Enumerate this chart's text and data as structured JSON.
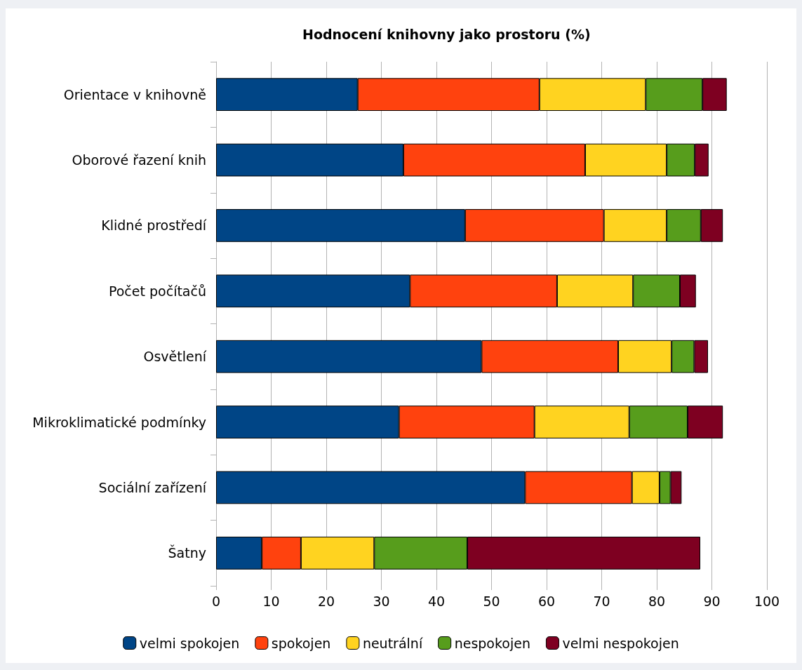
{
  "chart_data": {
    "type": "bar",
    "title": "Hodnocení knihovny jako prostoru (%)",
    "orientation": "horizontal",
    "stacked": true,
    "categories": [
      "Orientace v knihovně",
      "Oborové řazení knih",
      "Klidné prostředí",
      "Počet počítačů",
      "Osvětlení",
      "Mikroklimatické podmínky",
      "Sociální zařízení",
      "Šatny"
    ],
    "series": [
      {
        "name": "velmi spokojen",
        "color": "#004586",
        "values": [
          25.7,
          34.0,
          45.2,
          35.2,
          48.2,
          33.2,
          56.1,
          8.3
        ]
      },
      {
        "name": "spokojen",
        "color": "#ff420e",
        "values": [
          33.0,
          33.0,
          25.2,
          26.7,
          24.8,
          24.6,
          19.4,
          7.1
        ]
      },
      {
        "name": "neutrální",
        "color": "#ffd320",
        "values": [
          19.3,
          14.8,
          11.4,
          13.8,
          9.7,
          17.2,
          5.0,
          13.3
        ]
      },
      {
        "name": "nespokojen",
        "color": "#579d1c",
        "values": [
          10.3,
          5.1,
          6.2,
          8.5,
          4.1,
          10.6,
          2.0,
          16.9
        ]
      },
      {
        "name": "velmi nespokojen",
        "color": "#7e0021",
        "values": [
          4.4,
          2.5,
          4.0,
          2.9,
          2.5,
          6.4,
          2.0,
          42.3
        ]
      }
    ],
    "xlim": [
      0,
      100
    ],
    "xticks": [
      0,
      10,
      20,
      30,
      40,
      50,
      60,
      70,
      80,
      90,
      100
    ],
    "grid": "x",
    "legend": "bottom"
  }
}
